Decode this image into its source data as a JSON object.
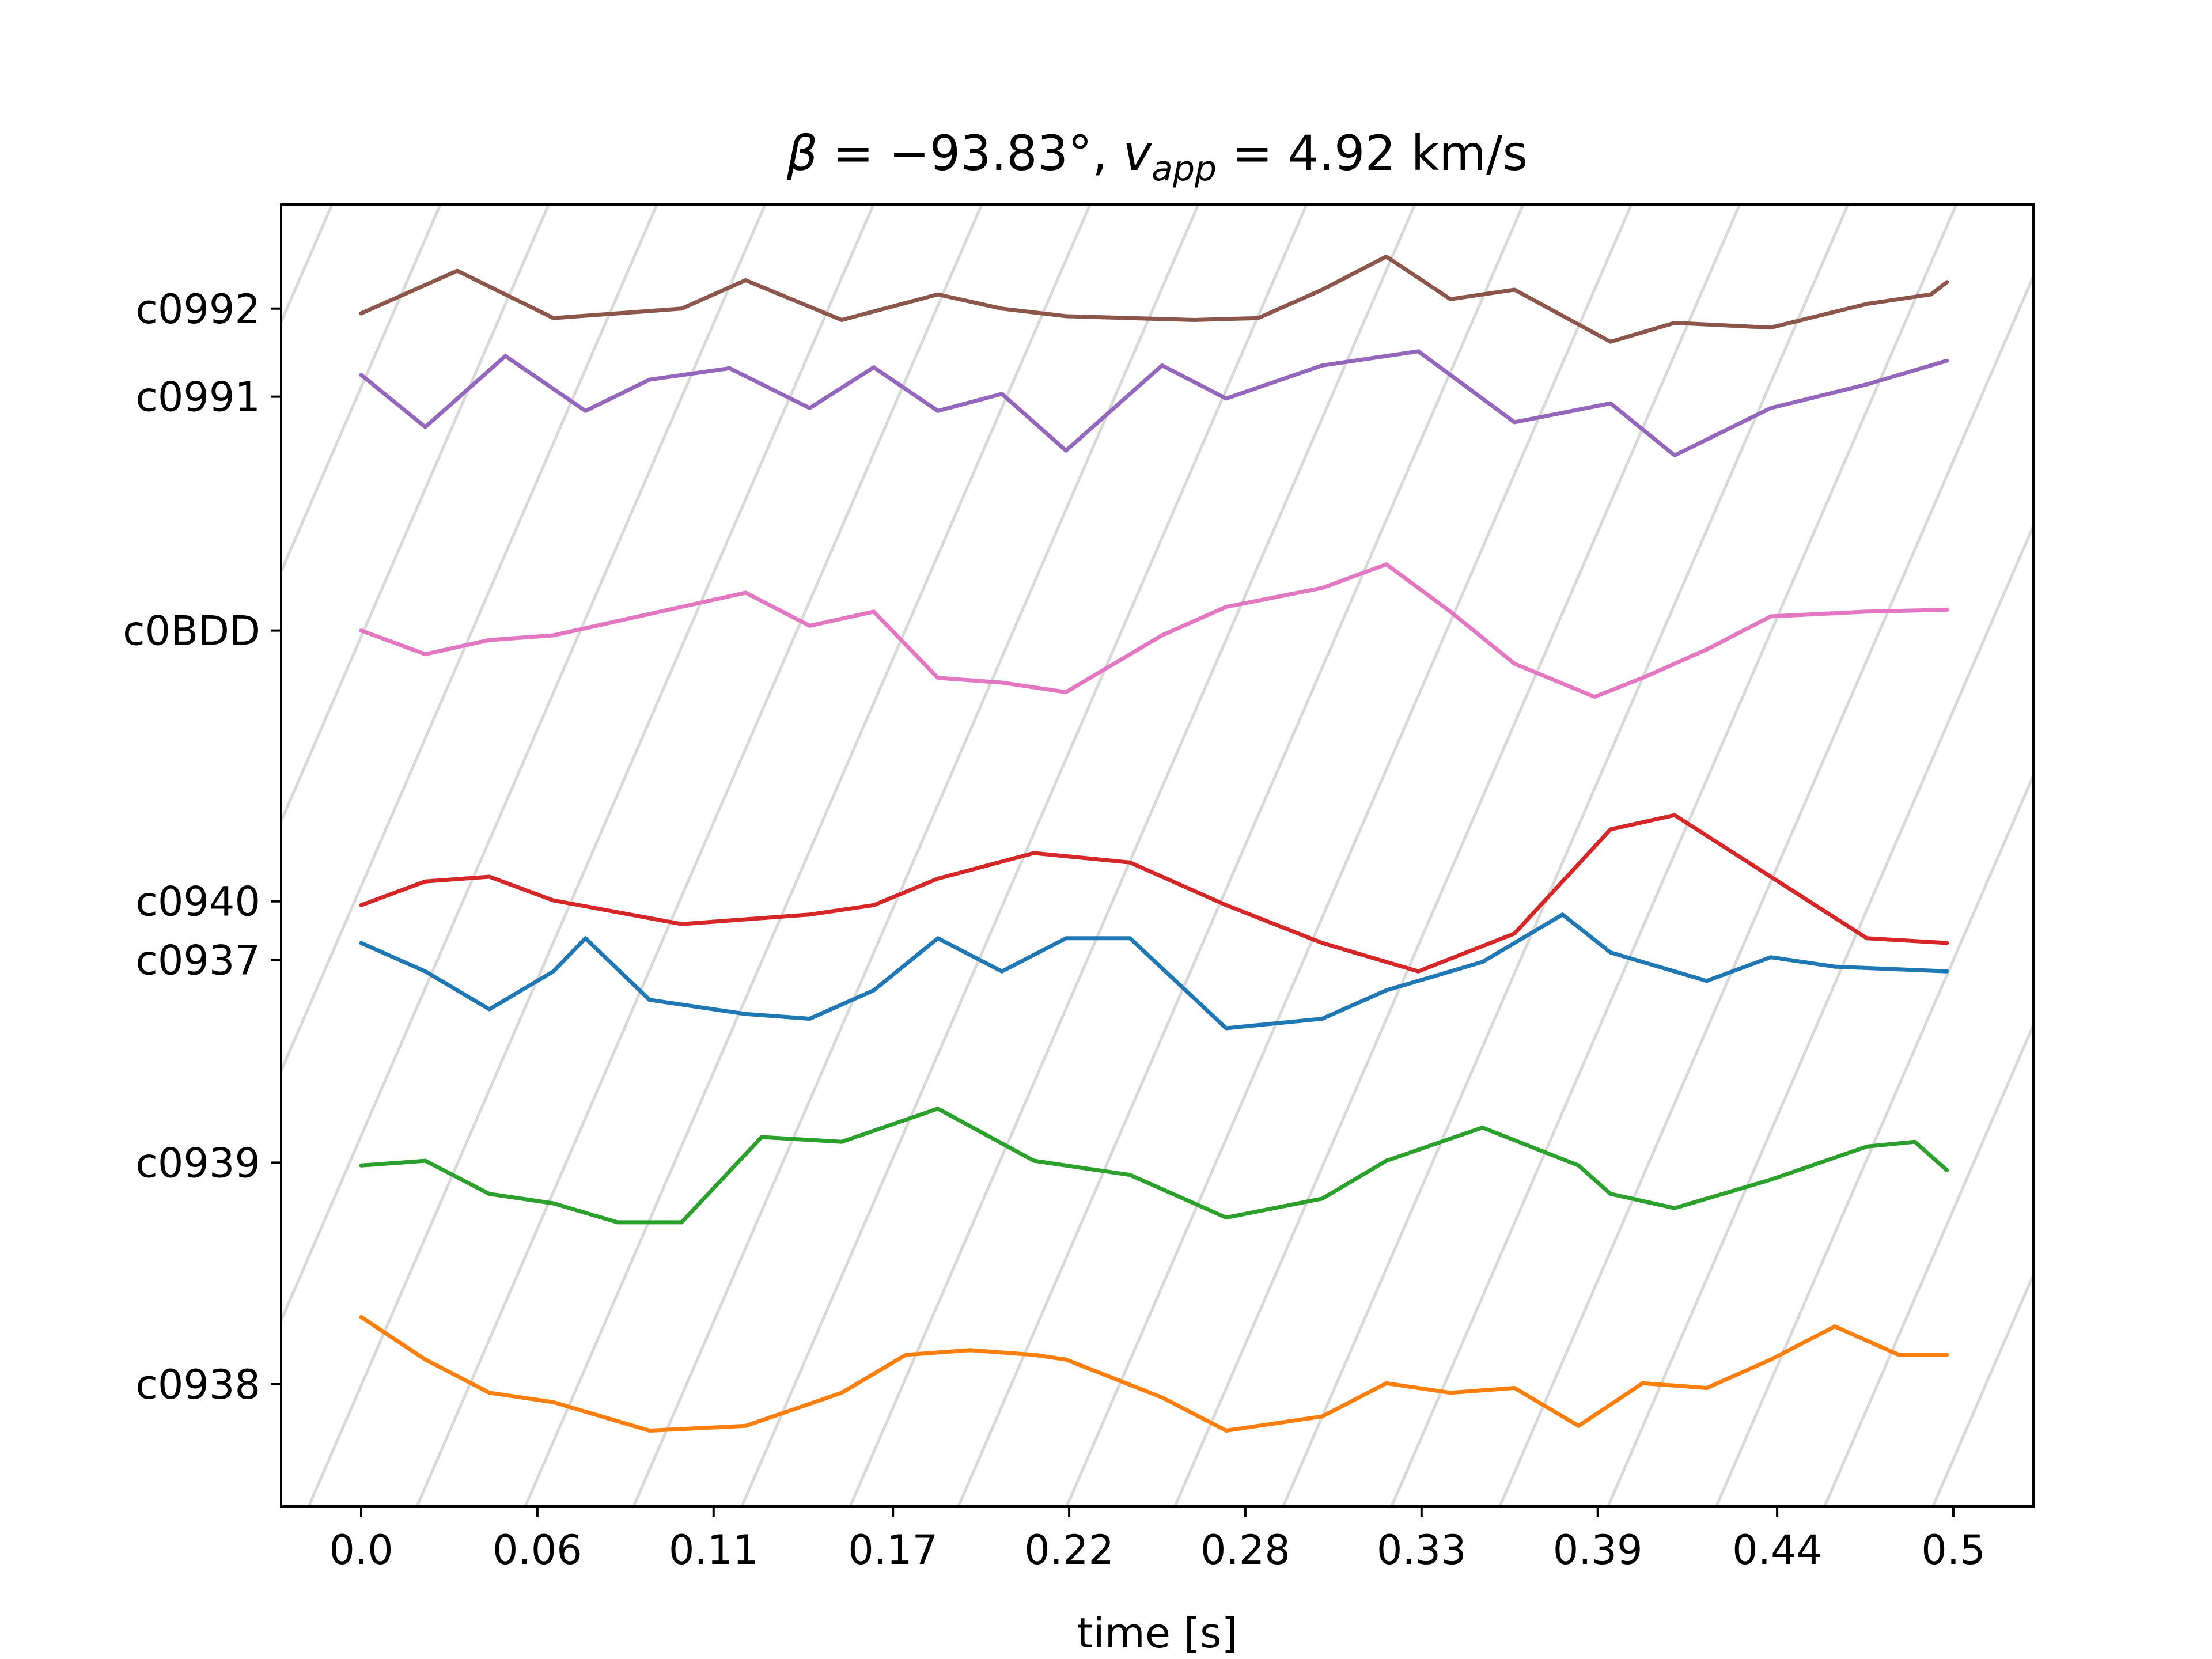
{
  "chart_data": {
    "type": "line",
    "title": "β = −93.83°, v_app = 4.92 km/s",
    "title_parts": {
      "beta_symbol": "β",
      "beta_text": " = −93.83°, ",
      "v_symbol": "v",
      "v_subscript": "app",
      "v_text": " = 4.92 km/s"
    },
    "xlabel": "time [s]",
    "ylabel": "",
    "xlim": [
      -0.025,
      0.522
    ],
    "ylim": [
      -6.55,
      7.2
    ],
    "grid": false,
    "x_ticks": [
      0.0,
      0.055,
      0.11,
      0.166,
      0.221,
      0.276,
      0.331,
      0.386,
      0.442,
      0.497
    ],
    "x_tick_labels": [
      "0.0",
      "0.06",
      "0.11",
      "0.17",
      "0.22",
      "0.28",
      "0.33",
      "0.39",
      "0.44",
      "0.5"
    ],
    "y_ticks": [
      6.1,
      5.17,
      2.7,
      -0.16,
      -0.78,
      -2.92,
      -5.26
    ],
    "y_tick_labels": [
      "c0992",
      "c0991",
      "c0BDD",
      "c0940",
      "c0937",
      "c0939",
      "c0938"
    ],
    "diagonal_guides": {
      "color": "#d9d9d9",
      "slope_per_second": 78.0,
      "spacing_seconds": 0.0338
    },
    "series": [
      {
        "label": "c0992",
        "color": "#8c564b",
        "x": [
          0.0,
          0.03,
          0.06,
          0.1,
          0.12,
          0.15,
          0.18,
          0.2,
          0.22,
          0.26,
          0.28,
          0.3,
          0.32,
          0.34,
          0.36,
          0.39,
          0.41,
          0.44,
          0.47,
          0.49,
          0.495
        ],
        "y": [
          6.05,
          6.5,
          6.0,
          6.1,
          6.4,
          5.98,
          6.25,
          6.1,
          6.02,
          5.98,
          6.0,
          6.3,
          6.65,
          6.2,
          6.3,
          5.75,
          5.95,
          5.9,
          6.15,
          6.25,
          6.38
        ]
      },
      {
        "label": "c0991",
        "color": "#9467bd",
        "x": [
          0.0,
          0.02,
          0.045,
          0.07,
          0.09,
          0.115,
          0.14,
          0.16,
          0.18,
          0.2,
          0.22,
          0.25,
          0.27,
          0.3,
          0.33,
          0.36,
          0.39,
          0.41,
          0.44,
          0.47,
          0.495
        ],
        "y": [
          5.4,
          4.85,
          5.6,
          5.02,
          5.35,
          5.47,
          5.05,
          5.48,
          5.02,
          5.2,
          4.6,
          5.5,
          5.15,
          5.5,
          5.65,
          4.9,
          5.1,
          4.55,
          5.05,
          5.3,
          5.55
        ]
      },
      {
        "label": "c0BDD",
        "color": "#e377c2",
        "x": [
          0.0,
          0.02,
          0.04,
          0.06,
          0.1,
          0.12,
          0.14,
          0.16,
          0.18,
          0.2,
          0.22,
          0.25,
          0.27,
          0.3,
          0.32,
          0.34,
          0.36,
          0.385,
          0.4,
          0.42,
          0.44,
          0.47,
          0.495
        ],
        "y": [
          2.7,
          2.45,
          2.6,
          2.65,
          2.95,
          3.1,
          2.75,
          2.9,
          2.2,
          2.15,
          2.05,
          2.65,
          2.95,
          3.15,
          3.4,
          2.9,
          2.35,
          2.0,
          2.2,
          2.5,
          2.85,
          2.9,
          2.92
        ]
      },
      {
        "label": "c0940",
        "color": "#d62728",
        "x": [
          0.0,
          0.02,
          0.04,
          0.06,
          0.1,
          0.14,
          0.16,
          0.18,
          0.21,
          0.24,
          0.27,
          0.3,
          0.33,
          0.36,
          0.39,
          0.41,
          0.44,
          0.47,
          0.495
        ],
        "y": [
          -0.2,
          0.05,
          0.1,
          -0.15,
          -0.4,
          -0.3,
          -0.2,
          0.08,
          0.35,
          0.25,
          -0.2,
          -0.6,
          -0.9,
          -0.5,
          0.6,
          0.75,
          0.1,
          -0.55,
          -0.6
        ]
      },
      {
        "label": "c0937",
        "color": "#1f77b4",
        "x": [
          0.0,
          0.02,
          0.04,
          0.06,
          0.07,
          0.09,
          0.12,
          0.14,
          0.16,
          0.18,
          0.2,
          0.22,
          0.24,
          0.27,
          0.3,
          0.32,
          0.35,
          0.375,
          0.39,
          0.42,
          0.44,
          0.46,
          0.495
        ],
        "y": [
          -0.6,
          -0.9,
          -1.3,
          -0.9,
          -0.55,
          -1.2,
          -1.35,
          -1.4,
          -1.1,
          -0.55,
          -0.9,
          -0.55,
          -0.55,
          -1.5,
          -1.4,
          -1.1,
          -0.8,
          -0.3,
          -0.7,
          -1.0,
          -0.75,
          -0.85,
          -0.9
        ]
      },
      {
        "label": "c0939",
        "color": "#2ca02c",
        "x": [
          0.0,
          0.02,
          0.04,
          0.06,
          0.08,
          0.1,
          0.125,
          0.15,
          0.18,
          0.21,
          0.24,
          0.27,
          0.3,
          0.32,
          0.35,
          0.38,
          0.39,
          0.41,
          0.44,
          0.47,
          0.485,
          0.495
        ],
        "y": [
          -2.95,
          -2.9,
          -3.25,
          -3.35,
          -3.55,
          -3.55,
          -2.65,
          -2.7,
          -2.35,
          -2.9,
          -3.05,
          -3.5,
          -3.3,
          -2.9,
          -2.55,
          -2.95,
          -3.25,
          -3.4,
          -3.1,
          -2.75,
          -2.7,
          -3.0
        ]
      },
      {
        "label": "c0938",
        "color": "#ff7f0e",
        "x": [
          0.0,
          0.02,
          0.04,
          0.06,
          0.09,
          0.12,
          0.15,
          0.17,
          0.19,
          0.21,
          0.22,
          0.25,
          0.27,
          0.3,
          0.32,
          0.34,
          0.36,
          0.38,
          0.4,
          0.42,
          0.44,
          0.46,
          0.48,
          0.495
        ],
        "y": [
          -4.55,
          -5.0,
          -5.35,
          -5.45,
          -5.75,
          -5.7,
          -5.35,
          -4.95,
          -4.9,
          -4.95,
          -5.0,
          -5.4,
          -5.75,
          -5.6,
          -5.25,
          -5.35,
          -5.3,
          -5.7,
          -5.25,
          -5.3,
          -5.0,
          -4.65,
          -4.95,
          -4.95
        ]
      }
    ]
  }
}
